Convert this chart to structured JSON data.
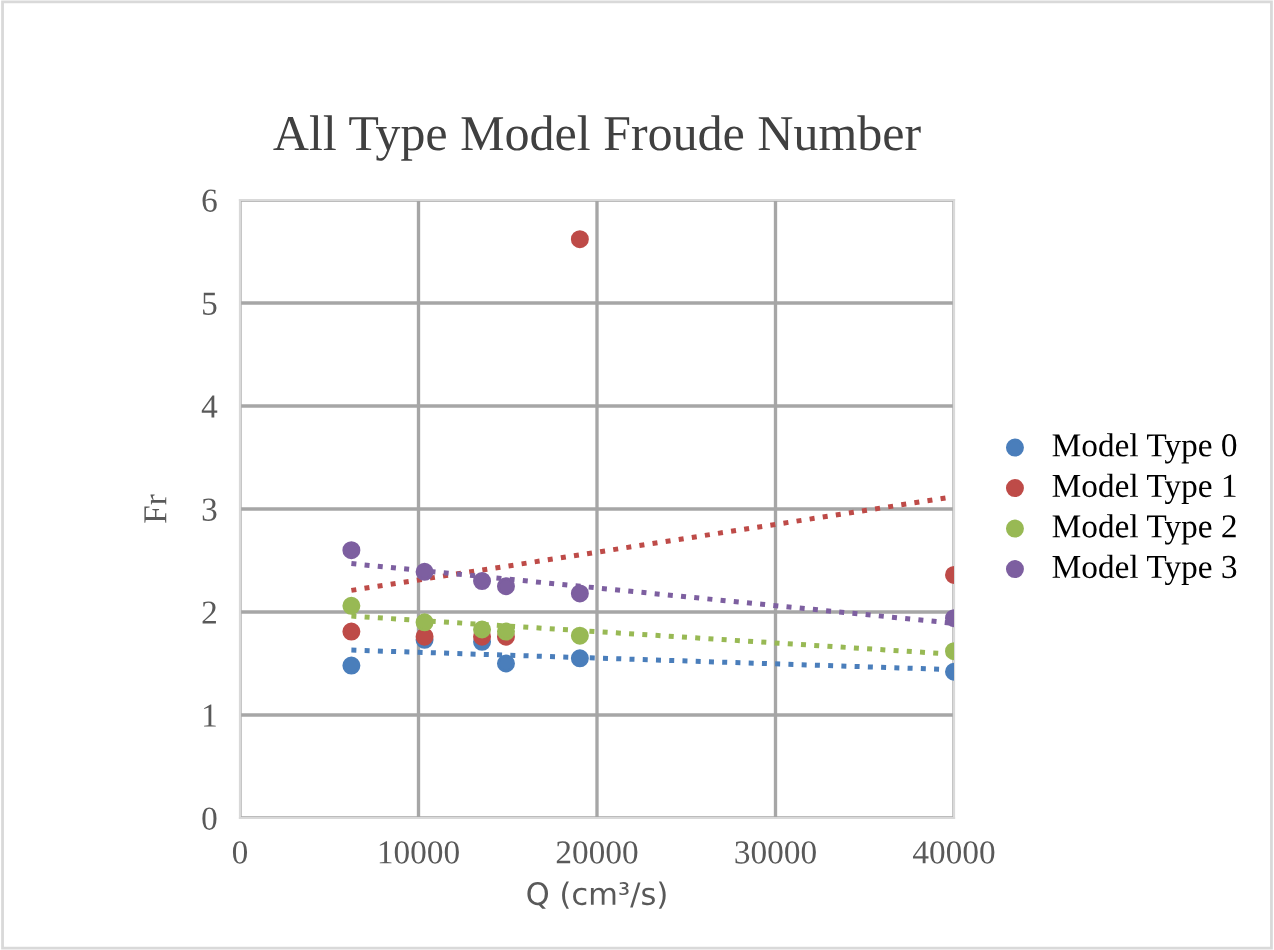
{
  "chart_data": {
    "type": "scatter",
    "title": "All Type Model Froude Number",
    "xlabel": "Q (cm³/s)",
    "ylabel": "Fr",
    "xlim": [
      0,
      40000
    ],
    "xticks": [
      0,
      10000,
      20000,
      30000,
      40000
    ],
    "ylim": [
      0,
      6
    ],
    "yticks": [
      0,
      1,
      2,
      3,
      4,
      5,
      6
    ],
    "grid": true,
    "legend": "right",
    "marker": "circle",
    "series": [
      {
        "name": "Model Type 0",
        "color": "#4a7ebb",
        "x": [
          6240,
          10340,
          13560,
          14900,
          19040,
          40000
        ],
        "values": [
          1.48,
          1.73,
          1.71,
          1.5,
          1.55,
          1.42
        ]
      },
      {
        "name": "Model Type 1",
        "color": "#be4b48",
        "x": [
          6240,
          10340,
          13560,
          14900,
          19040,
          40000
        ],
        "values": [
          1.81,
          1.76,
          1.76,
          1.76,
          5.62,
          2.36
        ]
      },
      {
        "name": "Model Type 2",
        "color": "#98b954",
        "x": [
          6240,
          10340,
          13560,
          14900,
          19040,
          40000
        ],
        "values": [
          2.06,
          1.9,
          1.83,
          1.81,
          1.77,
          1.62
        ]
      },
      {
        "name": "Model Type 3",
        "color": "#7d5fa0",
        "x": [
          6240,
          10340,
          13560,
          14900,
          19040,
          40000
        ],
        "values": [
          2.6,
          2.39,
          2.3,
          2.25,
          2.18,
          1.94
        ]
      },
      {
        "type": "line",
        "line_style": "dotted",
        "marker": "none",
        "color": "#4a7ebb",
        "x": [
          6240,
          40000
        ],
        "values": [
          1.63,
          1.44
        ]
      },
      {
        "type": "line",
        "line_style": "dotted",
        "marker": "none",
        "color": "#be4b48",
        "x": [
          6240,
          40000
        ],
        "values": [
          2.21,
          3.12
        ]
      },
      {
        "type": "line",
        "line_style": "dotted",
        "marker": "none",
        "color": "#98b954",
        "x": [
          6240,
          40000
        ],
        "values": [
          1.96,
          1.59
        ]
      },
      {
        "type": "line",
        "line_style": "dotted",
        "marker": "none",
        "color": "#7d5fa0",
        "x": [
          6240,
          40000
        ],
        "values": [
          2.47,
          1.89
        ]
      }
    ]
  }
}
